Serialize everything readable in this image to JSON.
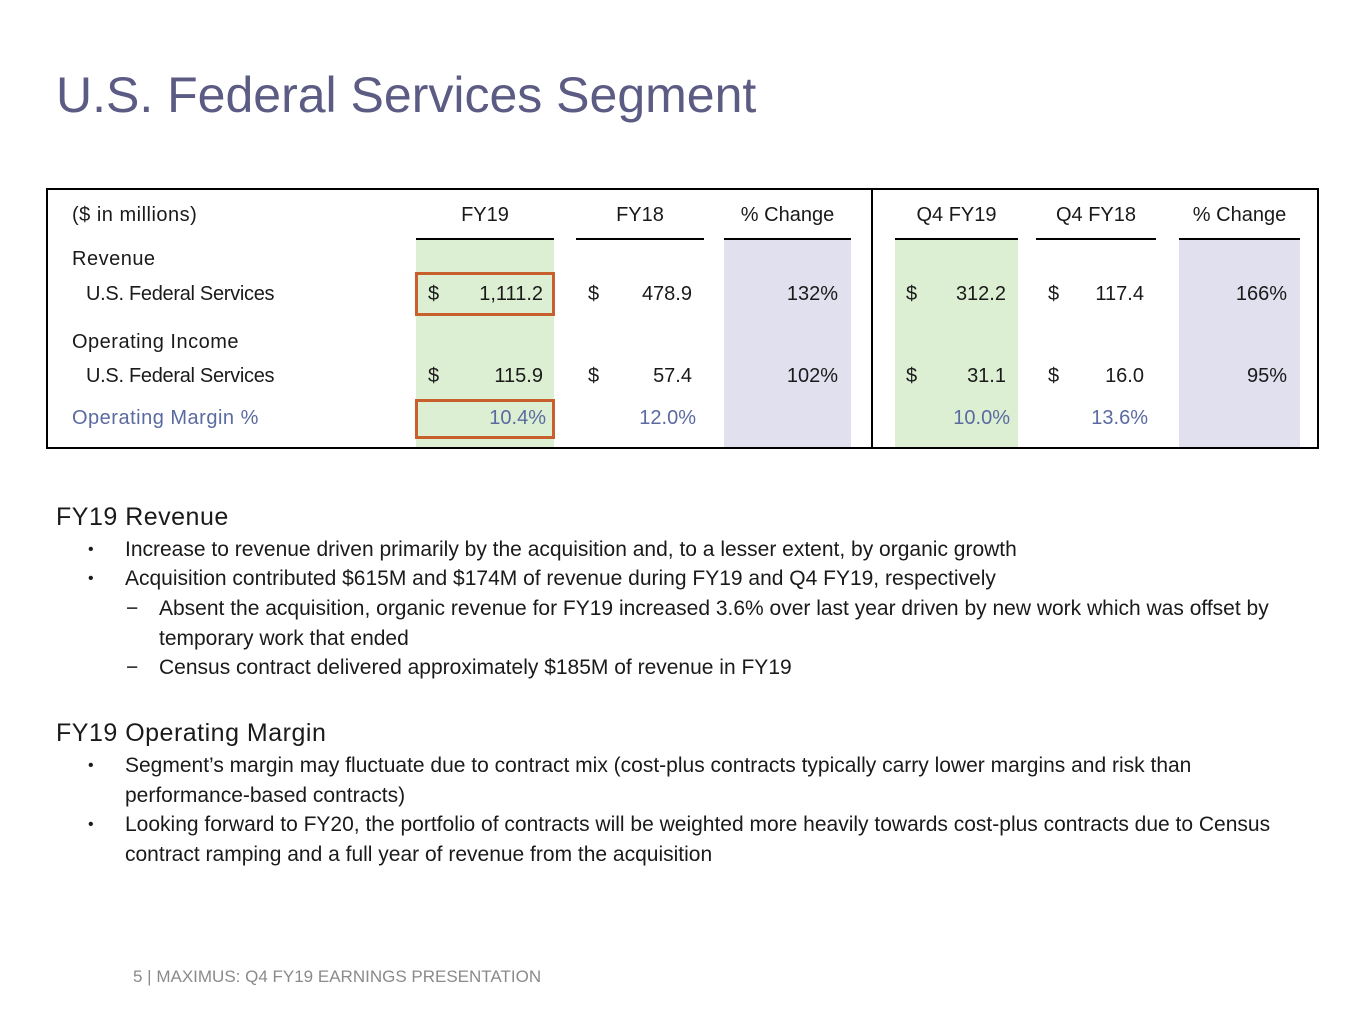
{
  "page": {
    "title": "U.S. Federal Services Segment",
    "footer": "5 | MAXIMUS: Q4 FY19 EARNINGS PRESENTATION"
  },
  "table": {
    "unit_label": "($ in millions)",
    "headers": {
      "fy19": "FY19",
      "fy18": "FY18",
      "pct_change": "% Change",
      "q4fy19": "Q4 FY19",
      "q4fy18": "Q4 FY18",
      "q4_pct_change": "% Change"
    },
    "currency_symbol": "$",
    "revenue": {
      "label": "Revenue",
      "row_label": "U.S. Federal Services",
      "fy19": "1,111.2",
      "fy18": "478.9",
      "pct_change": "132%",
      "q4fy19": "312.2",
      "q4fy18": "117.4",
      "q4_pct_change": "166%"
    },
    "operating_income": {
      "label": "Operating Income",
      "row_label": "U.S. Federal Services",
      "fy19": "115.9",
      "fy18": "57.4",
      "pct_change": "102%",
      "q4fy19": "31.1",
      "q4fy18": "16.0",
      "q4_pct_change": "95%"
    },
    "operating_margin": {
      "label": "Operating Margin %",
      "fy19": "10.4%",
      "fy18": "12.0%",
      "q4fy19": "10.0%",
      "q4fy18": "13.6%"
    },
    "colors": {
      "green_shade": "#dcefd3",
      "lavender_shade": "#e0e0ef",
      "highlight_border": "#c8602e",
      "margin_text": "#5b6aa0"
    }
  },
  "sections": {
    "revenue": {
      "heading": "FY19 Revenue",
      "bullets": [
        "Increase to revenue driven primarily by the acquisition and, to a lesser extent, by organic growth",
        "Acquisition contributed $615M and $174M of revenue during FY19 and Q4 FY19, respectively"
      ],
      "sub_bullets": [
        "Absent the acquisition, organic revenue for FY19 increased 3.6% over last year driven by new work which was offset by temporary work that ended",
        "Census contract delivered approximately $185M of revenue in FY19"
      ]
    },
    "operating_margin": {
      "heading": "FY19 Operating Margin",
      "bullets": [
        "Segment’s margin may fluctuate due to contract mix (cost-plus contracts typically carry lower margins and risk than performance-based contracts)",
        "Looking forward to FY20, the portfolio of contracts will be weighted more heavily towards cost-plus contracts due to Census contract ramping and a full year of revenue from the acquisition"
      ]
    },
    "bullet_marker": "•",
    "dash_marker": "−"
  }
}
